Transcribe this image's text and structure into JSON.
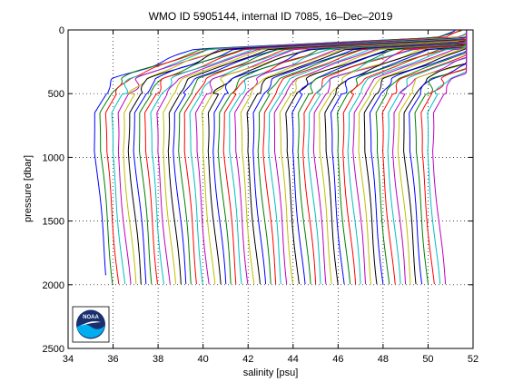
{
  "chart_data": {
    "type": "line",
    "title": "WMO ID 5905144, internal ID 7085, 16–Dec–2019",
    "xlabel": "salinity [psu]",
    "ylabel": "pressure [dbar]",
    "xlim": [
      34,
      52
    ],
    "ylim": [
      2500,
      0
    ],
    "xticks": [
      34,
      36,
      38,
      40,
      42,
      44,
      46,
      48,
      50,
      52
    ],
    "yticks": [
      0,
      500,
      1000,
      1500,
      2000,
      2500
    ],
    "grid": true,
    "grid_style": "dotted",
    "profile_count": 61,
    "profile_offset_psu": 0.25,
    "first_profile_deep_salinity": 35.2,
    "profile_max_pressure": 2000,
    "first_profile_max_pressure": 1930,
    "series_colors": [
      "#0000ff",
      "#008000",
      "#ff0000",
      "#00bfbf",
      "#bf00bf",
      "#bfbf00",
      "#000000"
    ],
    "logo": {
      "text": "NOAA",
      "colors": [
        "#1a2f6e",
        "#00aeef",
        "#ffffff"
      ]
    }
  }
}
